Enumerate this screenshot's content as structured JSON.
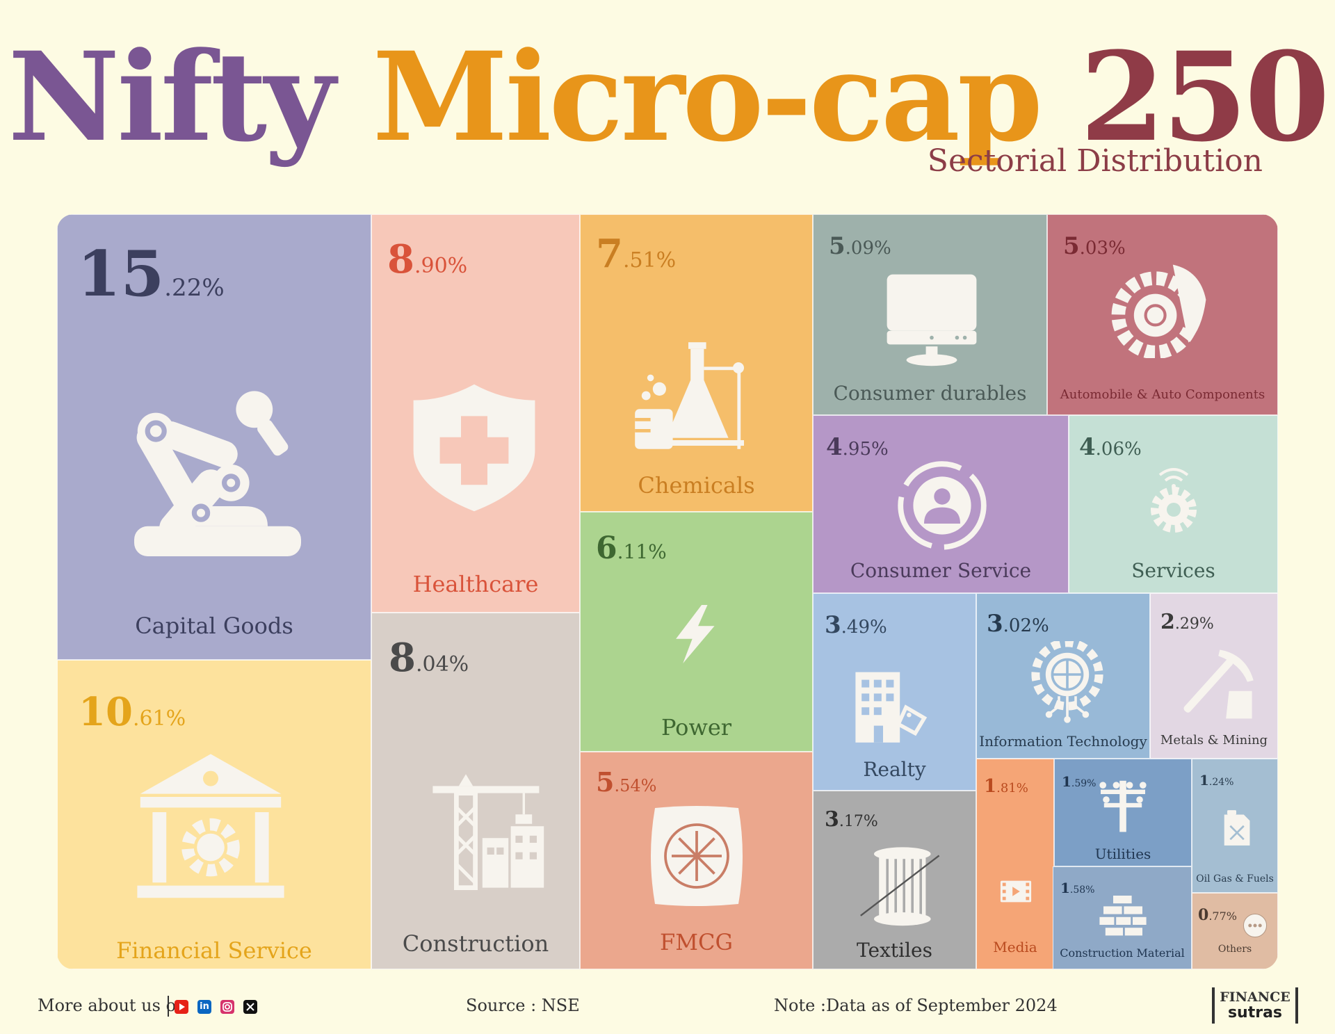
{
  "title": {
    "part1": "Nifty",
    "part2": "Micro-cap",
    "part3": "250",
    "subtitle": "Sectorial Distribution"
  },
  "colors": {
    "purple": "#7a5693",
    "orange": "#e8951a",
    "maroon": "#8f3b47"
  },
  "chart_data": {
    "type": "treemap",
    "unit": "%",
    "items": [
      {
        "label": "Capital Goods",
        "int": "15",
        "dec": ".22%",
        "value": 15.22,
        "color": "#a9aacc",
        "text": "#3c3f5e",
        "icon": "robot-arm-icon"
      },
      {
        "label": "Financial Service",
        "int": "10",
        "dec": ".61%",
        "value": 10.61,
        "color": "#fde29d",
        "text": "#e4a41b",
        "icon": "bank-icon"
      },
      {
        "label": "Healthcare",
        "int": "8",
        "dec": ".90%",
        "value": 8.9,
        "color": "#f7c8b9",
        "text": "#d9533a",
        "icon": "medical-shield-icon"
      },
      {
        "label": "Construction",
        "int": "8",
        "dec": ".04%",
        "value": 8.04,
        "color": "#d8cfc8",
        "text": "#4a4a4a",
        "icon": "crane-icon"
      },
      {
        "label": "Chemicals",
        "int": "7",
        "dec": ".51%",
        "value": 7.51,
        "color": "#f5be6a",
        "text": "#c97e22",
        "icon": "flask-icon"
      },
      {
        "label": "Power",
        "int": "6",
        "dec": ".11%",
        "value": 6.11,
        "color": "#acd48f",
        "text": "#3e6731",
        "icon": "lightning-icon"
      },
      {
        "label": "FMCG",
        "int": "5",
        "dec": ".54%",
        "value": 5.54,
        "color": "#eba78d",
        "text": "#c0502f",
        "icon": "snowflake-bag-icon"
      },
      {
        "label": "Consumer durables",
        "int": "5",
        "dec": ".09%",
        "value": 5.09,
        "color": "#9eb1ab",
        "text": "#4a5956",
        "icon": "monitor-icon"
      },
      {
        "label": "Automobile & Auto Components",
        "int": "5",
        "dec": ".03%",
        "value": 5.03,
        "color": "#c1737c",
        "text": "#7a2a33",
        "icon": "tyre-gear-icon"
      },
      {
        "label": "Consumer Service",
        "int": "4",
        "dec": ".95%",
        "value": 4.95,
        "color": "#b597c7",
        "text": "#4a3a5a",
        "icon": "person-circle-icon"
      },
      {
        "label": "Services",
        "int": "4",
        "dec": ".06%",
        "value": 4.06,
        "color": "#c5e0d5",
        "text": "#3f5e53",
        "icon": "gear-wifi-icon"
      },
      {
        "label": "Realty",
        "int": "3",
        "dec": ".49%",
        "value": 3.49,
        "color": "#a7c2e2",
        "text": "#33475f",
        "icon": "building-tag-icon"
      },
      {
        "label": "Information Technology",
        "int": "3",
        "dec": ".02%",
        "value": 3.02,
        "color": "#98b9d7",
        "text": "#263a4e",
        "icon": "globe-gear-icon"
      },
      {
        "label": "Metals & Mining",
        "int": "2",
        "dec": ".29%",
        "value": 2.29,
        "color": "#e2d7e3",
        "text": "#3a3a3a",
        "icon": "pickaxe-icon"
      },
      {
        "label": "Textiles",
        "int": "3",
        "dec": ".17%",
        "value": 3.17,
        "color": "#ababab",
        "text": "#2f2f2f",
        "icon": "thread-spool-icon"
      },
      {
        "label": "Media",
        "int": "1",
        "dec": ".81%",
        "value": 1.81,
        "color": "#f5a576",
        "text": "#b94a1e",
        "icon": "film-icon"
      },
      {
        "label": "Utilities",
        "int": "1",
        "dec": ".59%",
        "value": 1.59,
        "color": "#7c9fc6",
        "text": "#1f3550",
        "icon": "power-pole-icon"
      },
      {
        "label": "Construction Material",
        "int": "1",
        "dec": ".58%",
        "value": 1.58,
        "color": "#8fa9c7",
        "text": "#1f3550",
        "icon": "bricks-icon"
      },
      {
        "label": "Oil Gas & Fuels",
        "int": "1",
        "dec": ".24%",
        "value": 1.24,
        "color": "#a4bed2",
        "text": "#2a3d4f",
        "icon": "fuel-can-icon"
      },
      {
        "label": "Others",
        "int": "0",
        "dec": ".77%",
        "value": 0.77,
        "color": "#e0bca3",
        "text": "#4a3a30",
        "icon": "dots-icon"
      }
    ]
  },
  "footer": {
    "more": "More about us on",
    "source": "Source : NSE",
    "note": "Note :Data as of September 2024",
    "logo_line1": "FINANCE",
    "logo_line2": "sutras",
    "social": [
      "youtube-icon",
      "linkedin-icon",
      "instagram-icon",
      "x-icon"
    ]
  }
}
